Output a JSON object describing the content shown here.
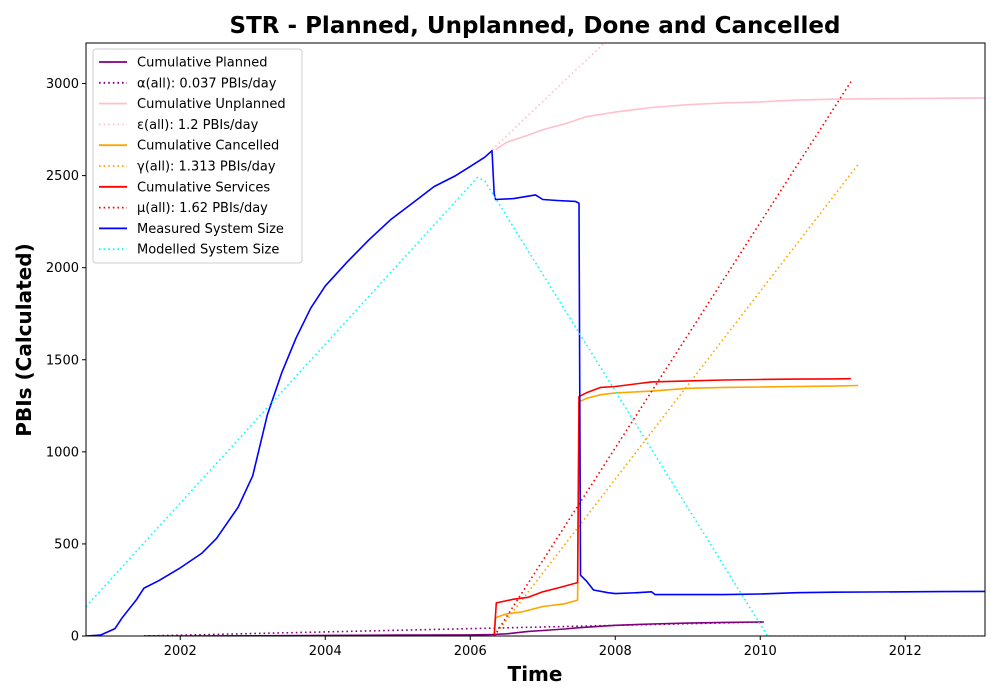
{
  "chart_data": {
    "type": "line",
    "title": "STR - Planned, Unplanned, Done  and Cancelled",
    "xlabel": "Time",
    "ylabel": "PBIs (Calculated)",
    "xlim": [
      2000.7,
      2013.1
    ],
    "ylim": [
      0,
      3220
    ],
    "xticks": [
      2002,
      2004,
      2006,
      2008,
      2010,
      2012
    ],
    "yticks": [
      0,
      500,
      1000,
      1500,
      2000,
      2500,
      3000
    ],
    "grid": false,
    "legend_position": "top-left",
    "series": [
      {
        "name": "Cumulative Planned",
        "color": "#800080",
        "style": "solid",
        "points": [
          [
            2001.5,
            0
          ],
          [
            2002,
            0
          ],
          [
            2003,
            1
          ],
          [
            2004,
            3
          ],
          [
            2005,
            5
          ],
          [
            2006,
            6
          ],
          [
            2006.3,
            8
          ],
          [
            2006.5,
            12
          ],
          [
            2006.8,
            25
          ],
          [
            2007,
            30
          ],
          [
            2007.3,
            38
          ],
          [
            2007.5,
            45
          ],
          [
            2008,
            58
          ],
          [
            2008.5,
            65
          ],
          [
            2009,
            70
          ],
          [
            2009.5,
            74
          ],
          [
            2010,
            76
          ],
          [
            2010.05,
            76
          ]
        ]
      },
      {
        "name": "α(all): 0.037 PBIs/day",
        "color": "#800080",
        "style": "dotted",
        "points": [
          [
            2001.5,
            0
          ],
          [
            2010.05,
            76
          ]
        ]
      },
      {
        "name": "Cumulative Unplanned",
        "color": "#ffc0cb",
        "style": "solid",
        "points": [
          [
            2006.35,
            2640
          ],
          [
            2006.5,
            2680
          ],
          [
            2006.8,
            2720
          ],
          [
            2007,
            2750
          ],
          [
            2007.3,
            2780
          ],
          [
            2007.6,
            2820
          ],
          [
            2008,
            2845
          ],
          [
            2008.5,
            2870
          ],
          [
            2009,
            2885
          ],
          [
            2009.5,
            2895
          ],
          [
            2010,
            2900
          ],
          [
            2010.5,
            2910
          ],
          [
            2011,
            2915
          ],
          [
            2012,
            2918
          ],
          [
            2013.1,
            2922
          ]
        ]
      },
      {
        "name": "ε(all): 1.2 PBIs/day",
        "color": "#ffc0cb",
        "style": "dotted",
        "points": [
          [
            2006.3,
            2640
          ],
          [
            2007.85,
            3220
          ]
        ]
      },
      {
        "name": "Cumulative Cancelled",
        "color": "#ffa500",
        "style": "solid",
        "points": [
          [
            2006.33,
            0
          ],
          [
            2006.35,
            100
          ],
          [
            2006.5,
            120
          ],
          [
            2006.7,
            130
          ],
          [
            2007,
            160
          ],
          [
            2007.3,
            175
          ],
          [
            2007.48,
            195
          ],
          [
            2007.5,
            1270
          ],
          [
            2007.6,
            1290
          ],
          [
            2007.8,
            1310
          ],
          [
            2008,
            1320
          ],
          [
            2008.5,
            1330
          ],
          [
            2009,
            1345
          ],
          [
            2009.5,
            1350
          ],
          [
            2010,
            1352
          ],
          [
            2010.5,
            1355
          ],
          [
            2011,
            1357
          ],
          [
            2011.35,
            1360
          ]
        ]
      },
      {
        "name": "γ(all): 1.313 PBIs/day",
        "color": "#ffa500",
        "style": "dotted",
        "points": [
          [
            2006.33,
            0
          ],
          [
            2011.35,
            2560
          ]
        ]
      },
      {
        "name": "Cumulative Services",
        "color": "#ff0000",
        "style": "solid",
        "points": [
          [
            2006.33,
            0
          ],
          [
            2006.36,
            180
          ],
          [
            2006.6,
            200
          ],
          [
            2006.8,
            210
          ],
          [
            2007,
            240
          ],
          [
            2007.2,
            260
          ],
          [
            2007.48,
            290
          ],
          [
            2007.5,
            1300
          ],
          [
            2007.6,
            1320
          ],
          [
            2007.8,
            1350
          ],
          [
            2008,
            1355
          ],
          [
            2008.5,
            1380
          ],
          [
            2009,
            1385
          ],
          [
            2009.5,
            1390
          ],
          [
            2010,
            1393
          ],
          [
            2010.5,
            1395
          ],
          [
            2011,
            1396
          ],
          [
            2011.25,
            1397
          ]
        ]
      },
      {
        "name": "μ(all): 1.62 PBIs/day",
        "color": "#ff0000",
        "style": "dotted",
        "points": [
          [
            2006.33,
            0
          ],
          [
            2011.25,
            3010
          ]
        ]
      },
      {
        "name": "Measured System Size",
        "color": "#0000ff",
        "style": "solid",
        "points": [
          [
            2000.7,
            0
          ],
          [
            2000.9,
            5
          ],
          [
            2001.1,
            40
          ],
          [
            2001.2,
            100
          ],
          [
            2001.4,
            200
          ],
          [
            2001.5,
            260
          ],
          [
            2001.7,
            300
          ],
          [
            2002,
            370
          ],
          [
            2002.3,
            450
          ],
          [
            2002.5,
            530
          ],
          [
            2002.8,
            700
          ],
          [
            2003,
            870
          ],
          [
            2003.2,
            1200
          ],
          [
            2003.4,
            1430
          ],
          [
            2003.6,
            1620
          ],
          [
            2003.8,
            1780
          ],
          [
            2004,
            1900
          ],
          [
            2004.3,
            2030
          ],
          [
            2004.6,
            2150
          ],
          [
            2004.9,
            2260
          ],
          [
            2005.2,
            2350
          ],
          [
            2005.5,
            2440
          ],
          [
            2005.8,
            2500
          ],
          [
            2006,
            2550
          ],
          [
            2006.2,
            2600
          ],
          [
            2006.3,
            2635
          ],
          [
            2006.33,
            2400
          ],
          [
            2006.35,
            2370
          ],
          [
            2006.6,
            2375
          ],
          [
            2006.9,
            2395
          ],
          [
            2007,
            2370
          ],
          [
            2007.2,
            2365
          ],
          [
            2007.45,
            2360
          ],
          [
            2007.5,
            2350
          ],
          [
            2007.52,
            330
          ],
          [
            2007.6,
            300
          ],
          [
            2007.7,
            250
          ],
          [
            2007.9,
            235
          ],
          [
            2008,
            230
          ],
          [
            2008.3,
            235
          ],
          [
            2008.5,
            240
          ],
          [
            2008.55,
            225
          ],
          [
            2009,
            225
          ],
          [
            2009.5,
            225
          ],
          [
            2010,
            228
          ],
          [
            2010.5,
            235
          ],
          [
            2011,
            238
          ],
          [
            2011.5,
            239
          ],
          [
            2012,
            240
          ],
          [
            2012.5,
            241
          ],
          [
            2013.1,
            242
          ]
        ]
      },
      {
        "name": "Modelled System Size",
        "color": "#00ffff",
        "style": "dotted",
        "points": [
          [
            2000.7,
            160
          ],
          [
            2006.1,
            2490
          ],
          [
            2006.2,
            2470
          ],
          [
            2010.1,
            0
          ],
          [
            2013.1,
            0
          ]
        ]
      }
    ]
  }
}
